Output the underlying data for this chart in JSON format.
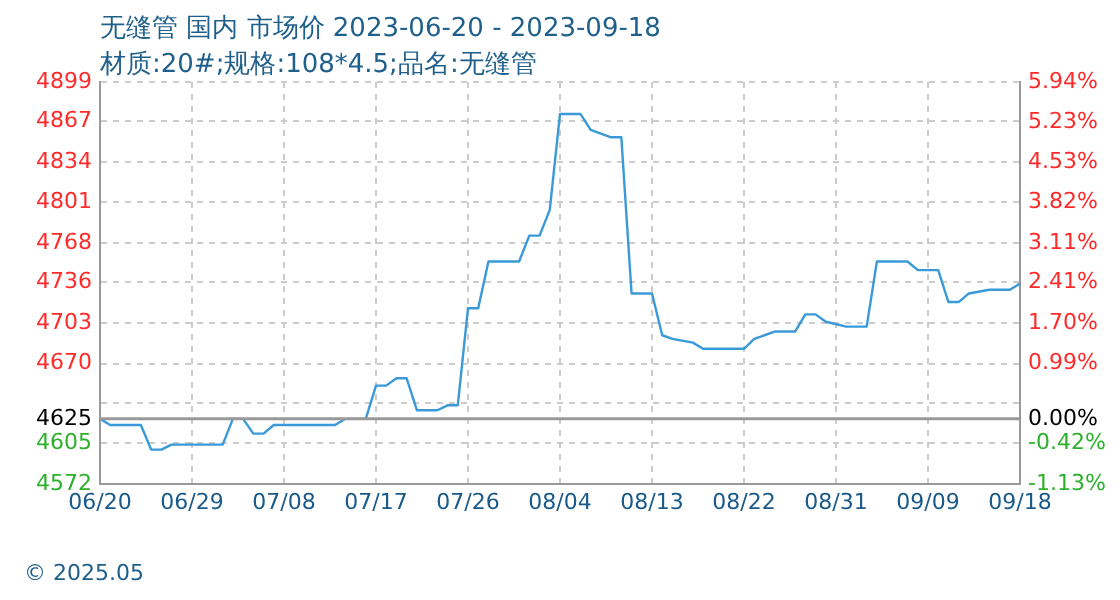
{
  "chart_data": {
    "type": "line",
    "title": "无缝管 国内 市场价 2023-06-20 - 2023-09-18",
    "subtitle": "材质:20#;规格:108*4.5;品名:无缝管",
    "annotations": [
      "© 2025.05"
    ],
    "x": [
      "2023-06-20",
      "2023-06-21",
      "2023-06-24",
      "2023-06-25",
      "2023-06-26",
      "2023-06-27",
      "2023-07-02",
      "2023-07-03",
      "2023-07-04",
      "2023-07-05",
      "2023-07-06",
      "2023-07-07",
      "2023-07-13",
      "2023-07-14",
      "2023-07-16",
      "2023-07-17",
      "2023-07-18",
      "2023-07-19",
      "2023-07-20",
      "2023-07-21",
      "2023-07-23",
      "2023-07-24",
      "2023-07-25",
      "2023-07-26",
      "2023-07-27",
      "2023-07-28",
      "2023-07-31",
      "2023-08-01",
      "2023-08-02",
      "2023-08-03",
      "2023-08-04",
      "2023-08-06",
      "2023-08-07",
      "2023-08-09",
      "2023-08-10",
      "2023-08-11",
      "2023-08-13",
      "2023-08-14",
      "2023-08-15",
      "2023-08-17",
      "2023-08-18",
      "2023-08-22",
      "2023-08-23",
      "2023-08-25",
      "2023-08-27",
      "2023-08-28",
      "2023-08-29",
      "2023-08-30",
      "2023-09-01",
      "2023-09-03",
      "2023-09-04",
      "2023-09-07",
      "2023-09-08",
      "2023-09-10",
      "2023-09-11",
      "2023-09-12",
      "2023-09-13",
      "2023-09-15",
      "2023-09-17",
      "2023-09-18"
    ],
    "series": [
      {
        "color": "#3a9ad9",
        "values": [
          4625,
          4620,
          4620,
          4600,
          4600,
          4604,
          4604,
          4625,
          4625,
          4613,
          4613,
          4620,
          4620,
          4625,
          4625,
          4652,
          4652,
          4658,
          4658,
          4632,
          4632,
          4636,
          4636,
          4715,
          4715,
          4753,
          4753,
          4774,
          4774,
          4795,
          4873,
          4873,
          4860,
          4854,
          4854,
          4727,
          4727,
          4693,
          4690,
          4687,
          4682,
          4682,
          4690,
          4696,
          4696,
          4710,
          4710,
          4704,
          4700,
          4700,
          4753,
          4753,
          4746,
          4746,
          4720,
          4720,
          4727,
          4730,
          4730,
          4735
        ]
      }
    ],
    "xlim": [
      "2023-06-20",
      "2023-09-18"
    ],
    "xticks": [
      {
        "value": "2023-06-20",
        "label": "06/20"
      },
      {
        "value": "2023-06-29",
        "label": "06/29"
      },
      {
        "value": "2023-07-08",
        "label": "07/08"
      },
      {
        "value": "2023-07-17",
        "label": "07/17"
      },
      {
        "value": "2023-07-26",
        "label": "07/26"
      },
      {
        "value": "2023-08-04",
        "label": "08/04"
      },
      {
        "value": "2023-08-13",
        "label": "08/13"
      },
      {
        "value": "2023-08-22",
        "label": "08/22"
      },
      {
        "value": "2023-08-31",
        "label": "08/31"
      },
      {
        "value": "2023-09-09",
        "label": "09/09"
      },
      {
        "value": "2023-09-18",
        "label": "09/18"
      }
    ],
    "ylim": [
      4572,
      4899
    ],
    "yticks": [
      4572,
      4605,
      4625,
      {
        "value": 4638,
        "label": null
      },
      4670,
      4703,
      4736,
      4768,
      4801,
      4834,
      4867,
      4899
    ],
    "y2lim": [
      -1.13,
      5.94
    ],
    "y2ticks": [
      {
        "value": -1.13,
        "label": "-1.13%"
      },
      {
        "value": -0.42,
        "label": "-0.42%"
      },
      {
        "value": 0,
        "label": "0.00%"
      },
      {
        "value": 0.99,
        "label": "0.99%"
      },
      {
        "value": 1.7,
        "label": "1.70%"
      },
      {
        "value": 2.41,
        "label": "2.41%"
      },
      {
        "value": 3.11,
        "label": "3.11%"
      },
      {
        "value": 3.82,
        "label": "3.82%"
      },
      {
        "value": 4.53,
        "label": "4.53%"
      },
      {
        "value": 5.23,
        "label": "5.23%"
      },
      {
        "value": 5.94,
        "label": "5.94%"
      }
    ],
    "ref_lines": [
      {
        "axis": "y",
        "value": 4625,
        "color": "#999999"
      }
    ],
    "grid": true,
    "legend": false,
    "marker": "none",
    "line_style": "solid"
  }
}
